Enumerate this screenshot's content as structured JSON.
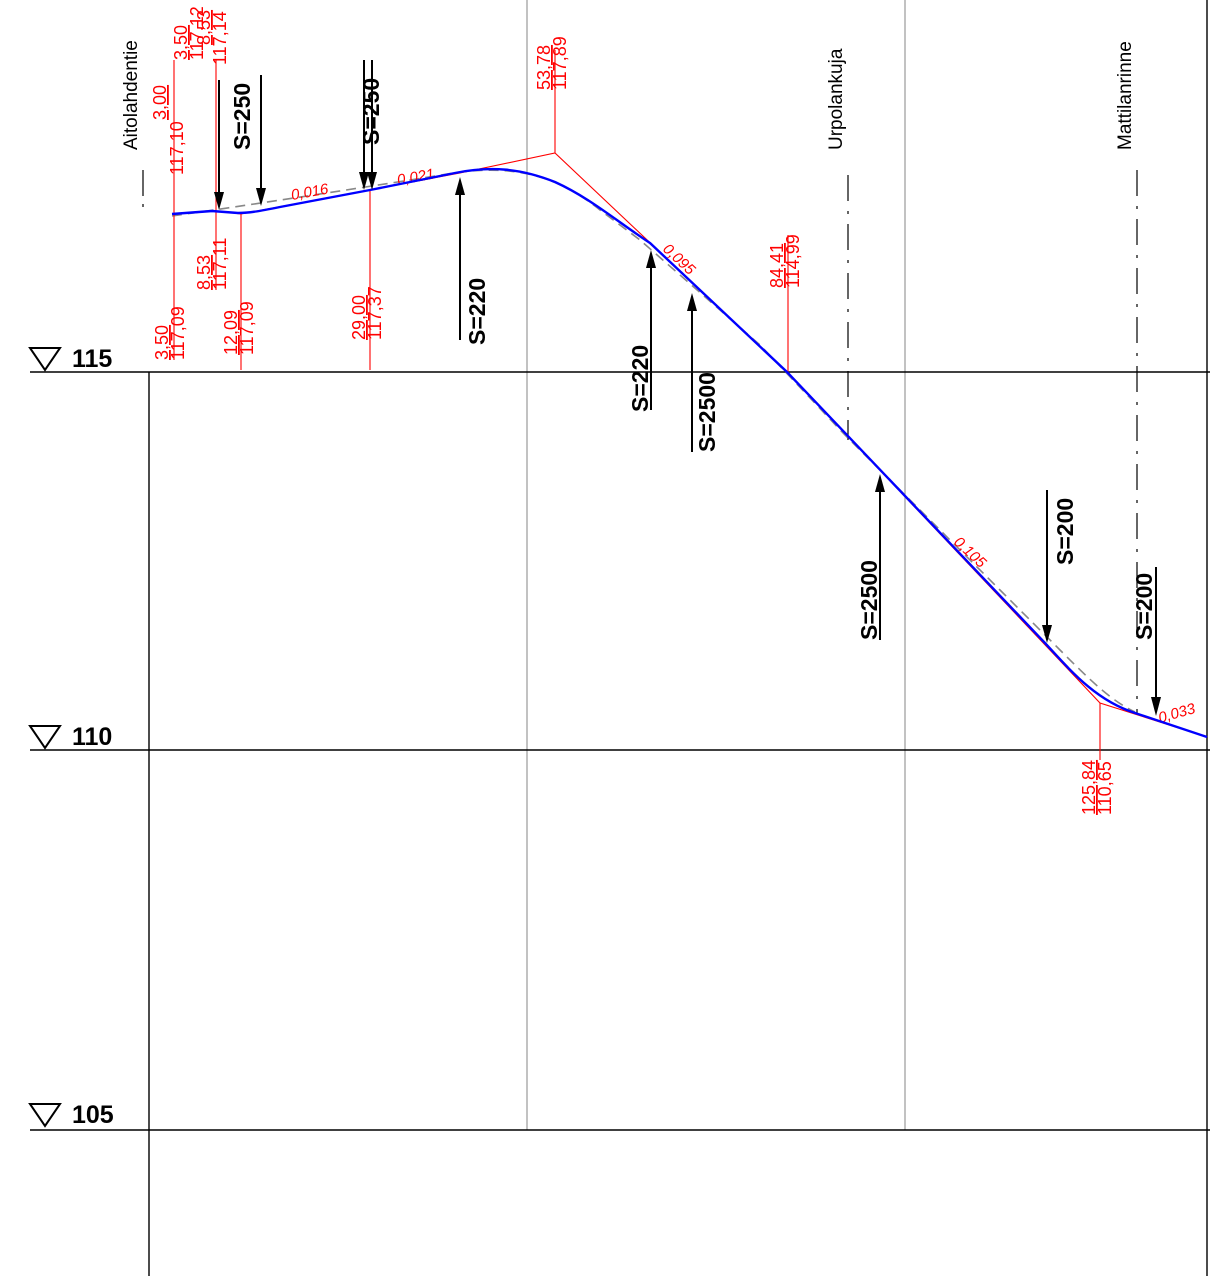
{
  "elevation_levels": [
    {
      "label": "115"
    },
    {
      "label": "110"
    },
    {
      "label": "105"
    }
  ],
  "streets": [
    {
      "name": "Aitolahdentie"
    },
    {
      "name": "Urpolankuja"
    },
    {
      "name": "Mattilanrinne"
    }
  ],
  "station_labels": [
    {
      "top": "3,50",
      "bottom": "117,12"
    },
    {
      "top": "3,00",
      "bottom": "117,10"
    },
    {
      "top": "8,53",
      "bottom": "117,14"
    },
    {
      "top": "3,50",
      "bottom": "117,09"
    },
    {
      "top": "8,53",
      "bottom": "117,11"
    },
    {
      "top": "12,09",
      "bottom": "117,09"
    },
    {
      "top": "29,00",
      "bottom": "117,37"
    },
    {
      "top": "53,78",
      "bottom": "117,89"
    },
    {
      "top": "84,41",
      "bottom": "114,99"
    },
    {
      "top": "125,84",
      "bottom": "110,65"
    }
  ],
  "grades": [
    {
      "label": "0,016"
    },
    {
      "label": "0,021"
    },
    {
      "label": "0,095"
    },
    {
      "label": "0,105"
    },
    {
      "label": "0,033"
    }
  ],
  "curve_radii": [
    {
      "label": "S=250"
    },
    {
      "label": "S=250"
    },
    {
      "label": "S=220"
    },
    {
      "label": "S=220"
    },
    {
      "label": "S=2500"
    },
    {
      "label": "S=2500"
    },
    {
      "label": "S=200"
    },
    {
      "label": "S=200"
    }
  ],
  "colors": {
    "design_line": "#0000ff",
    "annotations": "#ff0000",
    "existing_ground": "#888888",
    "grid": "#9a9a9a",
    "text": "#000000"
  }
}
